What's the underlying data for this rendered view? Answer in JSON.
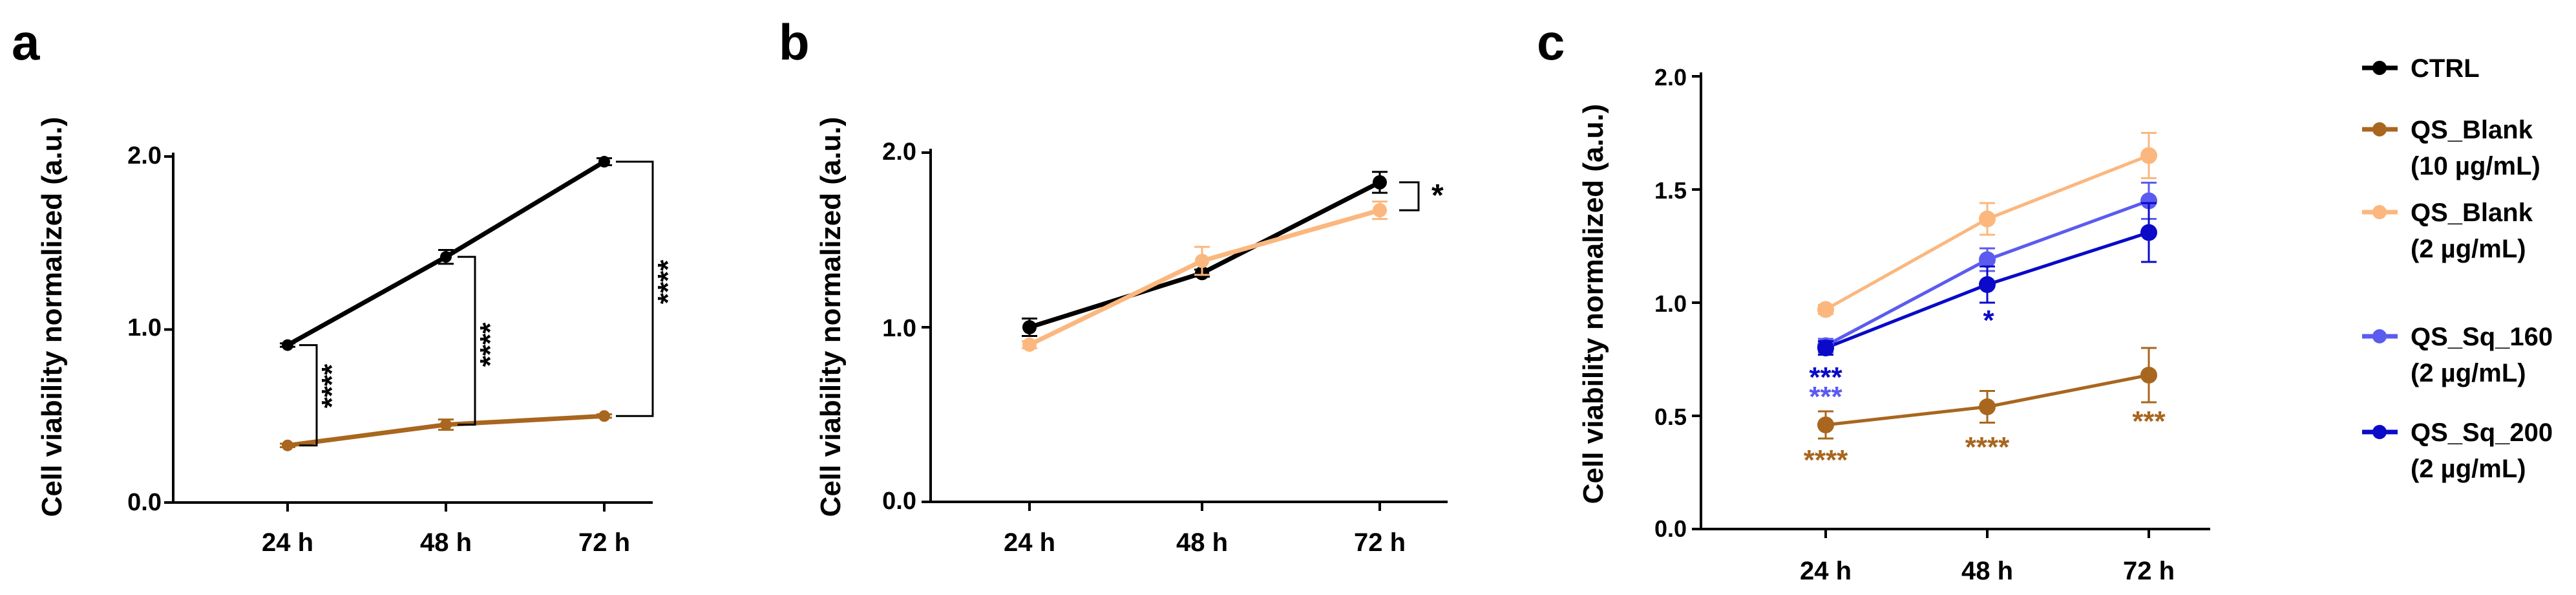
{
  "chart_data": [
    {
      "panel": "a",
      "type": "line",
      "ylabel": "Cell viability normalized (a.u.)",
      "categories": [
        "24 h",
        "48 h",
        "72 h"
      ],
      "yticks": [
        "0.0",
        "1.0",
        "2.0"
      ],
      "ylim": [
        0,
        2
      ],
      "series": [
        {
          "name": "CTRL",
          "color": "#000000",
          "values": [
            0.91,
            1.42,
            1.97
          ],
          "err": [
            0.01,
            0.04,
            0.02
          ]
        },
        {
          "name": "QS_Blank (10 µg/mL)",
          "color": "#a8661e",
          "values": [
            0.33,
            0.45,
            0.5
          ],
          "err": [
            0.01,
            0.03,
            0.01
          ]
        }
      ],
      "significance": [
        "****",
        "****",
        "****"
      ]
    },
    {
      "panel": "b",
      "type": "line",
      "ylabel": "Cell viability normalized (a.u.)",
      "categories": [
        "24 h",
        "48 h",
        "72 h"
      ],
      "yticks": [
        "0.0",
        "1.0",
        "2.0"
      ],
      "ylim": [
        0,
        2
      ],
      "series": [
        {
          "name": "CTRL",
          "color": "#000000",
          "values": [
            1.0,
            1.31,
            1.83
          ],
          "err": [
            0.05,
            0.02,
            0.06
          ]
        },
        {
          "name": "QS_Blank (2 µg/mL)",
          "color": "#fbb77e",
          "values": [
            0.9,
            1.38,
            1.67
          ],
          "err": [
            0.02,
            0.08,
            0.05
          ]
        }
      ],
      "significance": [
        "*"
      ]
    },
    {
      "panel": "c",
      "type": "line",
      "ylabel": "Cell viability normalized (a.u.)",
      "categories": [
        "24 h",
        "48 h",
        "72 h"
      ],
      "yticks": [
        "0.0",
        "0.5",
        "1.0",
        "1.5",
        "2.0"
      ],
      "ylim": [
        0,
        2
      ],
      "series": [
        {
          "name": "QS_Blank (10 µg/mL)",
          "color": "#a8661e",
          "values": [
            0.46,
            0.54,
            0.68
          ],
          "err": [
            0.06,
            0.07,
            0.12
          ]
        },
        {
          "name": "QS_Blank (2 µg/mL)",
          "color": "#fbb77e",
          "values": [
            0.97,
            1.37,
            1.65
          ],
          "err": [
            0.02,
            0.07,
            0.1
          ]
        },
        {
          "name": "QS_Sq_160 (2 µg/mL)",
          "color": "#5b5bf0",
          "values": [
            0.81,
            1.19,
            1.45
          ],
          "err": [
            0.03,
            0.05,
            0.08
          ]
        },
        {
          "name": "QS_Sq_200 (2 µg/mL)",
          "color": "#0a0ac8",
          "values": [
            0.8,
            1.08,
            1.31
          ],
          "err": [
            0.03,
            0.08,
            0.13
          ]
        }
      ],
      "significance": {
        "QS_Sq_200": [
          "***",
          "*",
          ""
        ],
        "QS_Sq_160": [
          "***",
          "",
          ""
        ],
        "QS_Blank_10": [
          "****",
          "****",
          "***"
        ]
      }
    }
  ],
  "legend": [
    {
      "line1": "CTRL",
      "line2": "",
      "color": "#000000"
    },
    {
      "line1": "QS_Blank",
      "line2": "(10 µg/mL)",
      "color": "#a8661e"
    },
    {
      "line1": "QS_Blank",
      "line2": "(2 µg/mL)",
      "color": "#fbb77e"
    },
    {
      "line1": "QS_Sq_160",
      "line2": "(2 µg/mL)",
      "color": "#5b5bf0"
    },
    {
      "line1": "QS_Sq_200",
      "line2": "(2 µg/mL)",
      "color": "#0a0ac8"
    }
  ],
  "panel_labels": [
    "a",
    "b",
    "c"
  ]
}
